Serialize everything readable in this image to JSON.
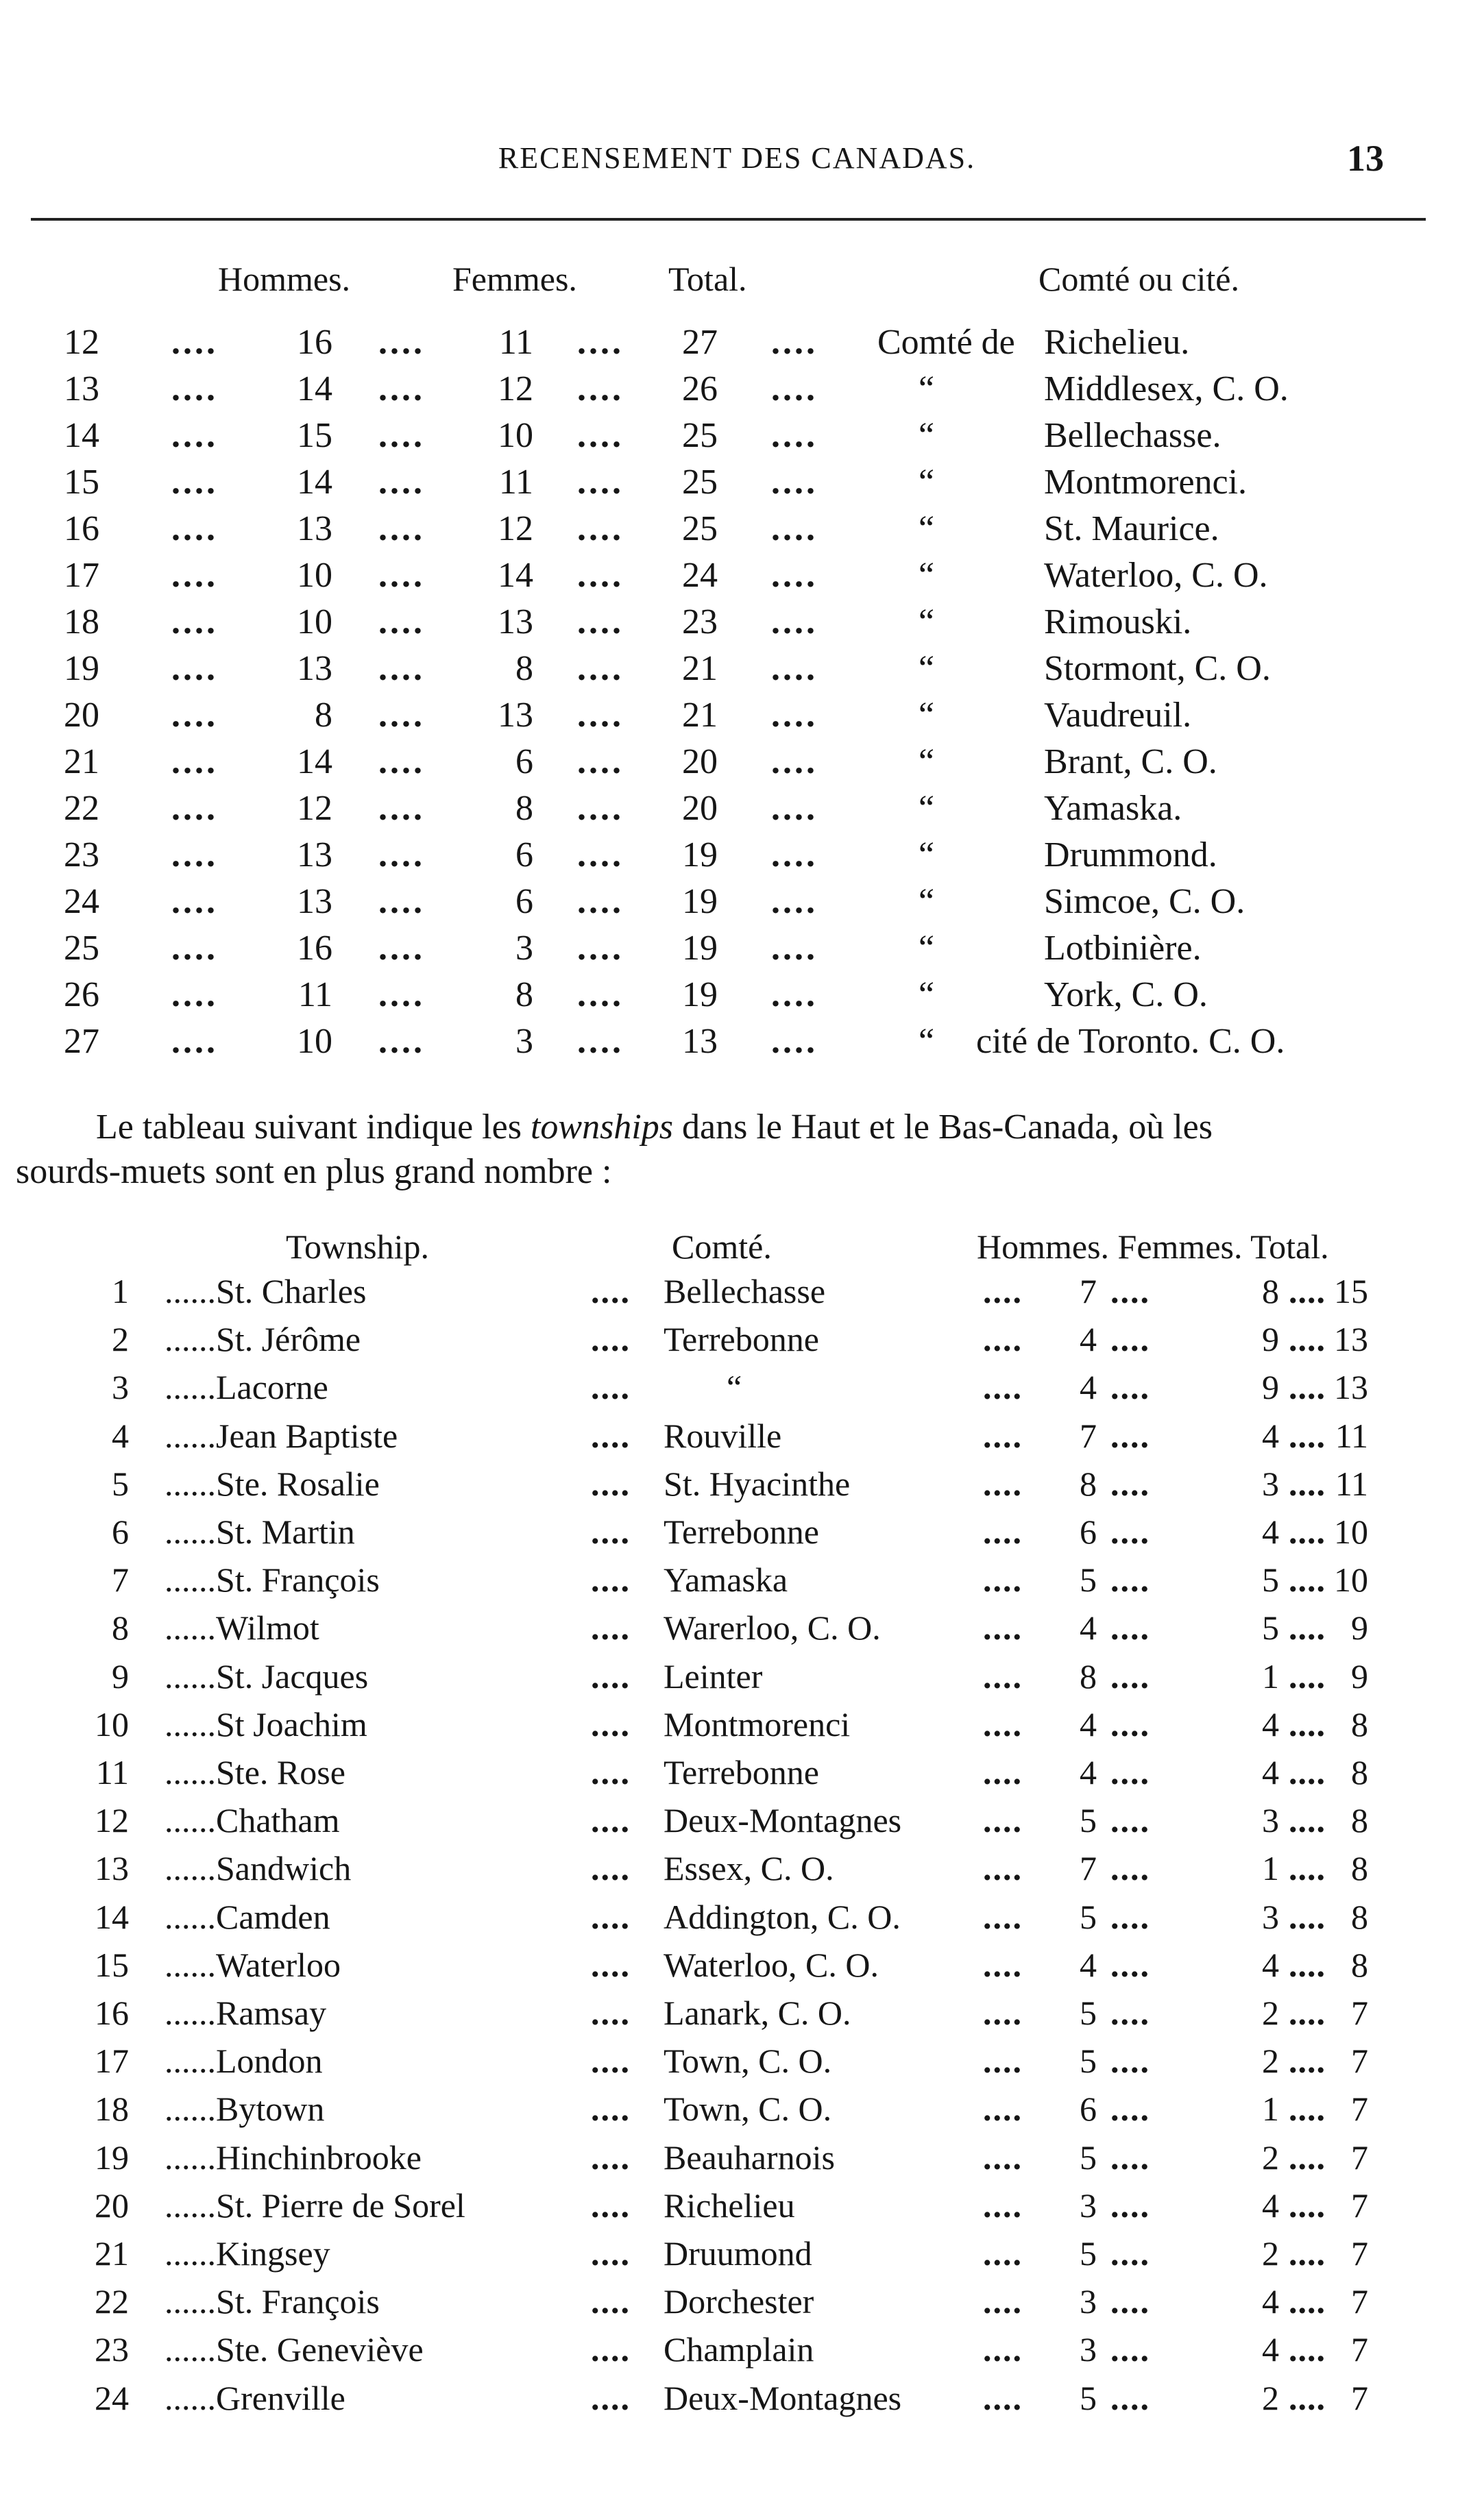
{
  "header": {
    "running_title": "RECENSEMENT DES CANADAS.",
    "page_number": "13"
  },
  "table1": {
    "headers": {
      "hommes": "Hommes.",
      "femmes": "Femmes.",
      "total": "Total.",
      "comte": "Comté ou cité."
    },
    "leader": "....",
    "rows": [
      {
        "rank": "12",
        "hommes": "16",
        "femmes": "11",
        "total": "27",
        "prefix": "Comté de",
        "place": "Richelieu."
      },
      {
        "rank": "13",
        "hommes": "14",
        "femmes": "12",
        "total": "26",
        "prefix": "“",
        "place": "Middlesex, C. O."
      },
      {
        "rank": "14",
        "hommes": "15",
        "femmes": "10",
        "total": "25",
        "prefix": "“",
        "place": "Bellechasse."
      },
      {
        "rank": "15",
        "hommes": "14",
        "femmes": "11",
        "total": "25",
        "prefix": "“",
        "place": "Montmorenci."
      },
      {
        "rank": "16",
        "hommes": "13",
        "femmes": "12",
        "total": "25",
        "prefix": "“",
        "place": "St. Maurice."
      },
      {
        "rank": "17",
        "hommes": "10",
        "femmes": "14",
        "total": "24",
        "prefix": "“",
        "place": "Waterloo, C. O."
      },
      {
        "rank": "18",
        "hommes": "10",
        "femmes": "13",
        "total": "23",
        "prefix": "“",
        "place": "Rimouski."
      },
      {
        "rank": "19",
        "hommes": "13",
        "femmes": "8",
        "total": "21",
        "prefix": "“",
        "place": "Stormont, C. O."
      },
      {
        "rank": "20",
        "hommes": "8",
        "femmes": "13",
        "total": "21",
        "prefix": "“",
        "place": "Vaudreuil."
      },
      {
        "rank": "21",
        "hommes": "14",
        "femmes": "6",
        "total": "20",
        "prefix": "“",
        "place": "Brant, C. O."
      },
      {
        "rank": "22",
        "hommes": "12",
        "femmes": "8",
        "total": "20",
        "prefix": "“",
        "place": "Yamaska."
      },
      {
        "rank": "23",
        "hommes": "13",
        "femmes": "6",
        "total": "19",
        "prefix": "“",
        "place": "Drummond."
      },
      {
        "rank": "24",
        "hommes": "13",
        "femmes": "6",
        "total": "19",
        "prefix": "“",
        "place": "Simcoe, C. O."
      },
      {
        "rank": "25",
        "hommes": "16",
        "femmes": "3",
        "total": "19",
        "prefix": "“",
        "place": "Lotbinière."
      },
      {
        "rank": "26",
        "hommes": "11",
        "femmes": "8",
        "total": "19",
        "prefix": "“",
        "place": "York, C. O."
      },
      {
        "rank": "27",
        "hommes": "10",
        "femmes": "3",
        "total": "13",
        "prefix": "“",
        "place": "cité de Toronto. C. O."
      }
    ]
  },
  "paragraph": {
    "before": "Le tableau suivant indique les ",
    "emphasis": "townships",
    "after_line1": " dans le Haut et le Bas-Canada, où les",
    "line2": "sourds-muets sont en plus grand nombre :"
  },
  "table2": {
    "headers": {
      "township": "Township.",
      "comte": "Comté.",
      "stats": "Hommes. Femmes. Total."
    },
    "leader_township": "......",
    "leader": "....",
    "rows": [
      {
        "rank": "1",
        "township": "St. Charles",
        "comte": "Bellechasse",
        "hommes": "7",
        "femmes": "8",
        "total": "15"
      },
      {
        "rank": "2",
        "township": "St. Jérôme",
        "comte": "Terrebonne",
        "hommes": "4",
        "femmes": "9",
        "total": "13"
      },
      {
        "rank": "3",
        "township": "Lacorne",
        "comte": "“",
        "hommes": "4",
        "femmes": "9",
        "total": "13"
      },
      {
        "rank": "4",
        "township": "Jean Baptiste",
        "comte": "Rouville",
        "hommes": "7",
        "femmes": "4",
        "total": "11"
      },
      {
        "rank": "5",
        "township": "Ste. Rosalie",
        "comte": "St. Hyacinthe",
        "hommes": "8",
        "femmes": "3",
        "total": "11"
      },
      {
        "rank": "6",
        "township": "St. Martin",
        "comte": "Terrebonne",
        "hommes": "6",
        "femmes": "4",
        "total": "10"
      },
      {
        "rank": "7",
        "township": "St. François",
        "comte": "Yamaska",
        "hommes": "5",
        "femmes": "5",
        "total": "10"
      },
      {
        "rank": "8",
        "township": "Wilmot",
        "comte": "Warerloo, C. O.",
        "hommes": "4",
        "femmes": "5",
        "total": "9"
      },
      {
        "rank": "9",
        "township": "St. Jacques",
        "comte": "Leinter",
        "hommes": "8",
        "femmes": "1",
        "total": "9"
      },
      {
        "rank": "10",
        "township": "St  Joachim",
        "comte": "Montmorenci",
        "hommes": "4",
        "femmes": "4",
        "total": "8"
      },
      {
        "rank": "11",
        "township": "Ste. Rose",
        "comte": "Terrebonne",
        "hommes": "4",
        "femmes": "4",
        "total": "8"
      },
      {
        "rank": "12",
        "township": "Chatham",
        "comte": "Deux-Montagnes",
        "hommes": "5",
        "femmes": "3",
        "total": "8"
      },
      {
        "rank": "13",
        "township": "Sandwich",
        "comte": "Essex, C. O.",
        "hommes": "7",
        "femmes": "1",
        "total": "8"
      },
      {
        "rank": "14",
        "township": "Camden",
        "comte": "Addington, C. O.",
        "hommes": "5",
        "femmes": "3",
        "total": "8"
      },
      {
        "rank": "15",
        "township": "Waterloo",
        "comte": "Waterloo, C. O.",
        "hommes": "4",
        "femmes": "4",
        "total": "8"
      },
      {
        "rank": "16",
        "township": "Ramsay",
        "comte": "Lanark, C. O.",
        "hommes": "5",
        "femmes": "2",
        "total": "7"
      },
      {
        "rank": "17",
        "township": "London",
        "comte": "Town, C. O.",
        "hommes": "5",
        "femmes": "2",
        "total": "7"
      },
      {
        "rank": "18",
        "township": "Bytown",
        "comte": "Town, C. O.",
        "hommes": "6",
        "femmes": "1",
        "total": "7"
      },
      {
        "rank": "19",
        "township": "Hinchinbrooke",
        "comte": "Beauharnois",
        "hommes": "5",
        "femmes": "2",
        "total": "7"
      },
      {
        "rank": "20",
        "township": "St. Pierre de Sorel",
        "comte": "Richelieu",
        "hommes": "3",
        "femmes": "4",
        "total": "7"
      },
      {
        "rank": "21",
        "township": "Kingsey",
        "comte": "Druumond",
        "hommes": "5",
        "femmes": "2",
        "total": "7"
      },
      {
        "rank": "22",
        "township": "St. François",
        "comte": "Dorchester",
        "hommes": "3",
        "femmes": "4",
        "total": "7"
      },
      {
        "rank": "23",
        "township": "Ste. Geneviève",
        "comte": "Champlain",
        "hommes": "3",
        "femmes": "4",
        "total": "7"
      },
      {
        "rank": "24",
        "township": "Grenville",
        "comte": "Deux-Montagnes",
        "hommes": "5",
        "femmes": "2",
        "total": "7"
      }
    ]
  }
}
